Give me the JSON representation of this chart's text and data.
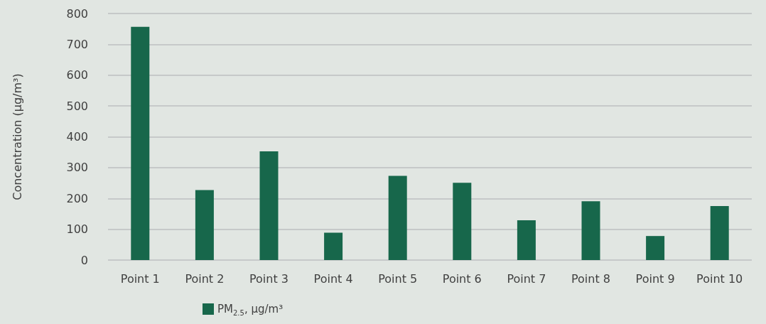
{
  "chart_data": {
    "type": "bar",
    "ylabel": "Concentration (µg/m³)",
    "categories": [
      "Point 1",
      "Point 2",
      "Point 3",
      "Point 4",
      "Point 5",
      "Point 6",
      "Point 7",
      "Point 8",
      "Point 9",
      "Point 10"
    ],
    "series": [
      {
        "name": "PM$_{2.5}$, µg/m³",
        "color": "#17674b",
        "values": [
          757,
          227,
          353,
          89,
          273,
          251,
          129,
          191,
          78,
          175
        ]
      }
    ],
    "ylim": [
      0,
      800
    ],
    "yticks": [
      0,
      100,
      200,
      300,
      400,
      500,
      600,
      700,
      800
    ],
    "grid": "y",
    "legend": "bottom"
  }
}
